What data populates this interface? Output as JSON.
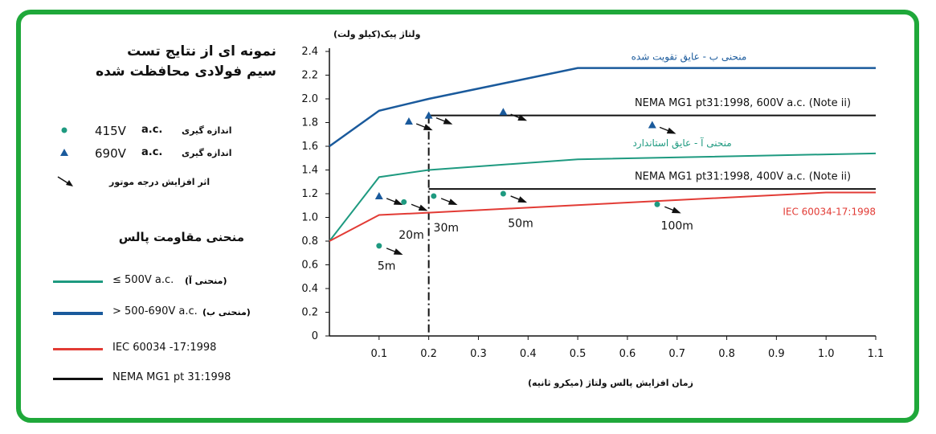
{
  "legend": {
    "title_line1": "نمونه ای از نتایج تست",
    "title_line2": "سیم فولادی محافظت شده",
    "meas_415_value": "415V",
    "meas_415_ac": "a.c.",
    "meas_415_label": "اندازه گیری",
    "meas_690_value": "690V",
    "meas_690_ac": "a.c.",
    "meas_690_label": "اندازه گیری",
    "motor_label": "اثر افزایش درجه موتور",
    "curves_title": "منحنی مقاومت پالس",
    "curve_a_text": "≤ 500V a.c.",
    "curve_a_fa": "(منحنی آ)",
    "curve_b_text": "> 500-690V a.c.",
    "curve_b_fa": "(منحنی ب)",
    "iec_text": "IEC 60034 -17:1998",
    "nema_text": "NEMA MG1 pt 31:1998",
    "colors": {
      "curve_a": "#1e9a80",
      "curve_b": "#1a5a9c",
      "iec": "#e23b35",
      "nema": "#111111",
      "frame": "#1fa83a"
    }
  },
  "chart_data": {
    "type": "line",
    "ylabel": "ولتاژ پیک(کیلو ولت)",
    "xlabel": "زمان افزایش پالس ولتاژ (میکرو ثانیه)",
    "xlim": [
      0,
      1.1
    ],
    "ylim": [
      0,
      2.4
    ],
    "xticks": [
      "0.1",
      "0.2",
      "0.3",
      "0.4",
      "0.5",
      "0.6",
      "0.7",
      "0.8",
      "0.9",
      "1.0",
      "1.1"
    ],
    "yticks": [
      "0",
      "0.2",
      "0.4",
      "0.6",
      "0.8",
      "1.0",
      "1.2",
      "1.4",
      "1.6",
      "1.8",
      "2.0",
      "2.2",
      "2.4"
    ],
    "series": [
      {
        "name": "curve_b",
        "label": "منحنی ب - عایق تقویت شده",
        "color": "#1a5a9c",
        "x": [
          0,
          0.1,
          0.2,
          0.5,
          1.1
        ],
        "y": [
          1.6,
          1.9,
          2.0,
          2.26,
          2.26
        ]
      },
      {
        "name": "curve_a",
        "label": "منحنی آ - عایق استاندارد",
        "color": "#1e9a80",
        "x": [
          0,
          0.1,
          0.2,
          0.5,
          1.1
        ],
        "y": [
          0.8,
          1.34,
          1.4,
          1.49,
          1.54
        ]
      },
      {
        "name": "iec",
        "label": "IEC 60034-17:1998",
        "color": "#e23b35",
        "x": [
          0,
          0.1,
          0.2,
          1.0,
          1.1
        ],
        "y": [
          0.8,
          1.02,
          1.04,
          1.21,
          1.21
        ]
      },
      {
        "name": "nema_600",
        "label": "NEMA MG1 pt31:1998, 600V a.c. (Note ii)",
        "color": "#111111",
        "x": [
          0.2,
          1.1
        ],
        "y": [
          1.86,
          1.86
        ]
      },
      {
        "name": "nema_400",
        "label": "NEMA MG1 pt31:1998, 400V a.c. (Note ii)",
        "color": "#111111",
        "x": [
          0.2,
          1.1
        ],
        "y": [
          1.24,
          1.24
        ]
      }
    ],
    "points_415": [
      {
        "x": 0.1,
        "y": 0.76
      },
      {
        "x": 0.15,
        "y": 1.13
      },
      {
        "x": 0.21,
        "y": 1.18
      },
      {
        "x": 0.35,
        "y": 1.2
      },
      {
        "x": 0.66,
        "y": 1.11
      }
    ],
    "points_690": [
      {
        "x": 0.1,
        "y": 1.18
      },
      {
        "x": 0.16,
        "y": 1.81
      },
      {
        "x": 0.2,
        "y": 1.86
      },
      {
        "x": 0.35,
        "y": 1.89
      },
      {
        "x": 0.65,
        "y": 1.78
      }
    ],
    "arrows": [
      {
        "x1": 0.115,
        "y1": 0.74,
        "x2": 0.145,
        "y2": 0.69
      },
      {
        "x1": 0.115,
        "y1": 1.16,
        "x2": 0.145,
        "y2": 1.11
      },
      {
        "x1": 0.165,
        "y1": 1.11,
        "x2": 0.195,
        "y2": 1.06
      },
      {
        "x1": 0.225,
        "y1": 1.16,
        "x2": 0.255,
        "y2": 1.11
      },
      {
        "x1": 0.365,
        "y1": 1.18,
        "x2": 0.395,
        "y2": 1.13
      },
      {
        "x1": 0.675,
        "y1": 1.09,
        "x2": 0.705,
        "y2": 1.04
      },
      {
        "x1": 0.175,
        "y1": 1.79,
        "x2": 0.205,
        "y2": 1.74
      },
      {
        "x1": 0.215,
        "y1": 1.84,
        "x2": 0.245,
        "y2": 1.79
      },
      {
        "x1": 0.365,
        "y1": 1.87,
        "x2": 0.395,
        "y2": 1.82
      },
      {
        "x1": 0.665,
        "y1": 1.76,
        "x2": 0.695,
        "y2": 1.71
      }
    ],
    "motor_labels": [
      {
        "text": "5m",
        "x": 0.115,
        "y": 0.56
      },
      {
        "text": "20m",
        "x": 0.165,
        "y": 0.82
      },
      {
        "text": "30m",
        "x": 0.235,
        "y": 0.88
      },
      {
        "text": "50m",
        "x": 0.385,
        "y": 0.92
      },
      {
        "text": "100m",
        "x": 0.7,
        "y": 0.9
      }
    ],
    "series_labels": [
      {
        "text": "منحنی ب - عایق تقویت شده",
        "x": 0.84,
        "y": 2.33,
        "color": "#1a5a9c",
        "anchor": "end"
      },
      {
        "text": "NEMA MG1 pt31:1998, 600V a.c. (Note ii)",
        "x": 1.05,
        "y": 1.94,
        "color": "#111111",
        "anchor": "end"
      },
      {
        "text": "منحنی آ - عایق استاندارد",
        "x": 0.81,
        "y": 1.6,
        "color": "#1e9a80",
        "anchor": "end"
      },
      {
        "text": "NEMA MG1 pt31:1998, 400V a.c. (Note ii)",
        "x": 1.05,
        "y": 1.32,
        "color": "#111111",
        "anchor": "end"
      },
      {
        "text": "IEC 60034-17:1998",
        "x": 1.1,
        "y": 1.02,
        "color": "#e23b35",
        "anchor": "end"
      }
    ],
    "vline_x": 0.2
  }
}
